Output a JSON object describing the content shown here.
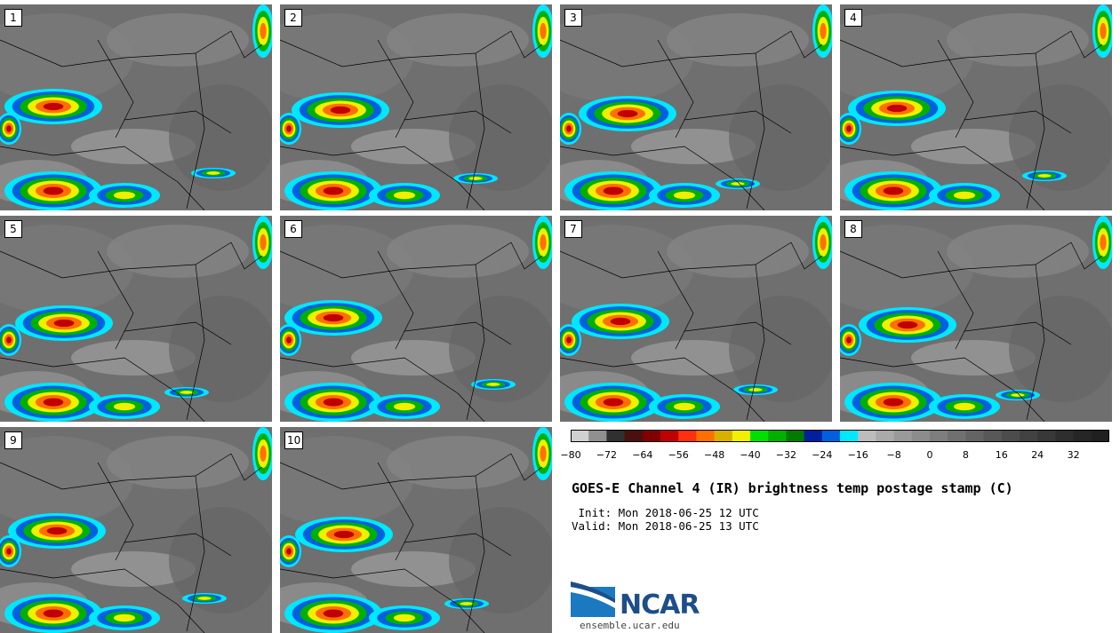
{
  "panels": [
    {
      "label": "1"
    },
    {
      "label": "2"
    },
    {
      "label": "3"
    },
    {
      "label": "4"
    },
    {
      "label": "5"
    },
    {
      "label": "6"
    },
    {
      "label": "7"
    },
    {
      "label": "8"
    },
    {
      "label": "9"
    },
    {
      "label": "10"
    }
  ],
  "colorbar": {
    "colors": [
      "#d0d0d0",
      "#909090",
      "#303030",
      "#4a1010",
      "#800000",
      "#c00000",
      "#ff3010",
      "#ff7000",
      "#d8b000",
      "#f0f000",
      "#00e000",
      "#00b000",
      "#007a00",
      "#0020a0",
      "#0060e0",
      "#00e8ff",
      "#bcbcbc",
      "#aaaaaa",
      "#9a9a9a",
      "#8c8c8c",
      "#7e7e7e",
      "#707070",
      "#646464",
      "#585858",
      "#4c4c4c",
      "#424242",
      "#383838",
      "#2e2e2e",
      "#262626",
      "#202020"
    ],
    "ticks": [
      "−80",
      "−72",
      "−64",
      "−56",
      "−48",
      "−40",
      "−32",
      "−24",
      "−16",
      "−8",
      "0",
      "8",
      "16",
      "24",
      "32"
    ],
    "min": -80,
    "max": 40
  },
  "title": "GOES-E Channel 4 (IR) brightness temp postage stamp (C)",
  "init": " Init: Mon 2018-06-25 12 UTC",
  "valid": "Valid: Mon 2018-06-25 13 UTC",
  "logo": {
    "text": "NCAR",
    "site": "ensemble.ucar.edu",
    "brand_color": "#1d4e89"
  }
}
